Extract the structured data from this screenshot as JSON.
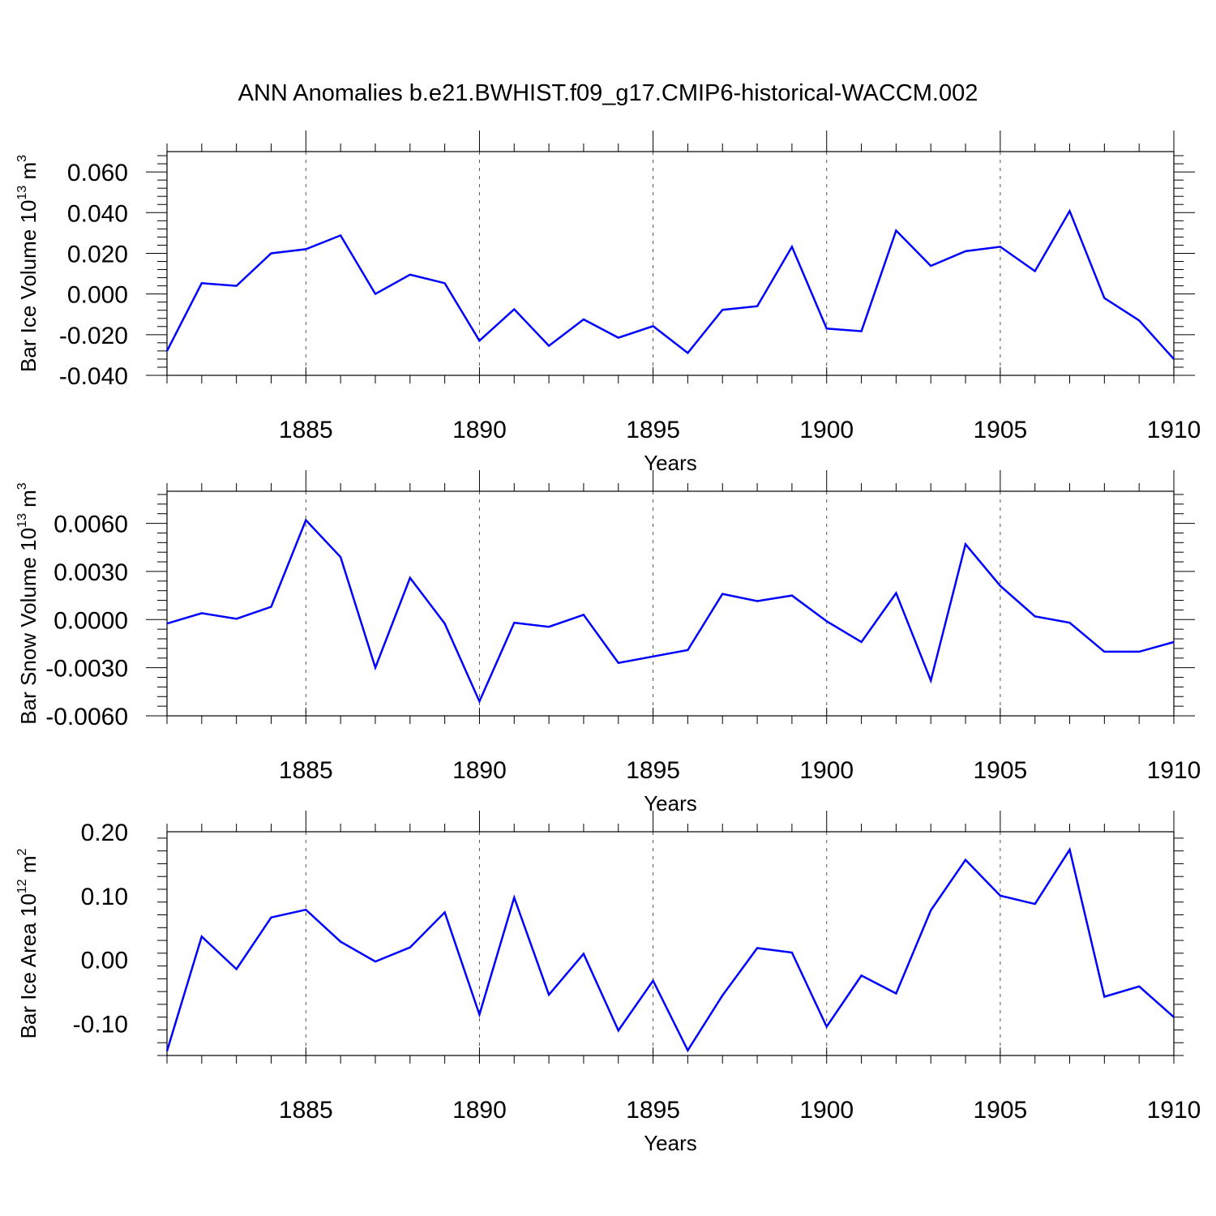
{
  "figure": {
    "title": "ANN Anomalies b.e21.BWHIST.f09_g17.CMIP6-historical-WACCM.002"
  },
  "chart_data": [
    {
      "type": "line",
      "ylabel_main": "Bar Ice Volume 10",
      "ylabel_exponent": "13",
      "ylabel_unit": " m",
      "ylabel_unit_exponent": "3",
      "xlabel": "Years",
      "xlim": [
        1881,
        1910
      ],
      "ylim": [
        -0.04,
        0.07
      ],
      "x_ticks": [
        1885,
        1890,
        1895,
        1900,
        1905,
        1910
      ],
      "y_ticks": [
        -0.04,
        -0.02,
        0.0,
        0.02,
        0.04,
        0.06
      ],
      "y_tick_labels": [
        "-0.040",
        "-0.020",
        "0.000",
        "0.020",
        "0.040",
        "0.060"
      ],
      "grid": "vertical dashed at major x ticks",
      "series": [
        {
          "color": "#0000ff",
          "x": [
            1881,
            1882,
            1883,
            1884,
            1885,
            1886,
            1887,
            1888,
            1889,
            1890,
            1891,
            1892,
            1893,
            1894,
            1895,
            1896,
            1897,
            1898,
            1899,
            1900,
            1901,
            1902,
            1903,
            1904,
            1905,
            1906,
            1907,
            1908,
            1909,
            1910
          ],
          "y": [
            -0.028,
            0.0053,
            0.004,
            0.02,
            0.022,
            0.0288,
            0.0,
            0.0095,
            0.0053,
            -0.023,
            -0.0075,
            -0.0255,
            -0.0125,
            -0.0215,
            -0.0158,
            -0.029,
            -0.0078,
            -0.006,
            0.0232,
            -0.017,
            -0.0183,
            0.0312,
            0.0138,
            0.021,
            0.0232,
            0.0112,
            0.0408,
            -0.002,
            -0.013,
            -0.032
          ]
        }
      ]
    },
    {
      "type": "line",
      "ylabel_main": "Bar Snow Volume 10",
      "ylabel_exponent": "13",
      "ylabel_unit": " m",
      "ylabel_unit_exponent": "3",
      "xlabel": "Years",
      "xlim": [
        1881,
        1910
      ],
      "ylim": [
        -0.006,
        0.008
      ],
      "x_ticks": [
        1885,
        1890,
        1895,
        1900,
        1905,
        1910
      ],
      "y_ticks": [
        -0.006,
        -0.003,
        0.0,
        0.003,
        0.006
      ],
      "y_tick_labels": [
        "-0.0060",
        "-0.0030",
        "0.0000",
        "0.0030",
        "0.0060"
      ],
      "grid": "vertical dashed at major x ticks",
      "series": [
        {
          "color": "#0000ff",
          "x": [
            1881,
            1882,
            1883,
            1884,
            1885,
            1886,
            1887,
            1888,
            1889,
            1890,
            1891,
            1892,
            1893,
            1894,
            1895,
            1896,
            1897,
            1898,
            1899,
            1900,
            1901,
            1902,
            1903,
            1904,
            1905,
            1906,
            1907,
            1908,
            1909,
            1910
          ],
          "y": [
            -0.00025,
            0.0004,
            5e-05,
            0.0008,
            0.0062,
            0.0039,
            -0.003,
            0.0026,
            -0.00025,
            -0.0051,
            -0.0002,
            -0.00045,
            0.0003,
            -0.0027,
            -0.0023,
            -0.0019,
            0.0016,
            0.00115,
            0.0015,
            -0.0001,
            -0.0014,
            0.00165,
            -0.0038,
            0.0047,
            0.0021,
            0.0002,
            -0.0002,
            -0.002,
            -0.002,
            -0.0014
          ]
        }
      ]
    },
    {
      "type": "line",
      "ylabel_main": "Bar Ice Area 10",
      "ylabel_exponent": "12",
      "ylabel_unit": " m",
      "ylabel_unit_exponent": "2",
      "xlabel": "Years",
      "xlim": [
        1881,
        1910
      ],
      "ylim": [
        -0.15,
        0.2
      ],
      "x_ticks": [
        1885,
        1890,
        1895,
        1900,
        1905,
        1910
      ],
      "y_ticks": [
        -0.1,
        0.0,
        0.1,
        0.2
      ],
      "y_tick_labels": [
        "-0.10",
        "0.00",
        "0.10",
        "0.20"
      ],
      "grid": "vertical dashed at major x ticks",
      "series": [
        {
          "color": "#0000ff",
          "x": [
            1881,
            1882,
            1883,
            1884,
            1885,
            1886,
            1887,
            1888,
            1889,
            1890,
            1891,
            1892,
            1893,
            1894,
            1895,
            1896,
            1897,
            1898,
            1899,
            1900,
            1901,
            1902,
            1903,
            1904,
            1905,
            1906,
            1907,
            1908,
            1909,
            1910
          ],
          "y": [
            -0.143,
            0.036,
            -0.015,
            0.066,
            0.078,
            0.028,
            -0.003,
            0.019,
            0.074,
            -0.086,
            0.097,
            -0.055,
            0.009,
            -0.111,
            -0.033,
            -0.142,
            -0.056,
            0.018,
            0.011,
            -0.105,
            -0.025,
            -0.053,
            0.077,
            0.156,
            0.1,
            0.087,
            0.172,
            -0.058,
            -0.042,
            -0.09
          ]
        }
      ]
    }
  ]
}
